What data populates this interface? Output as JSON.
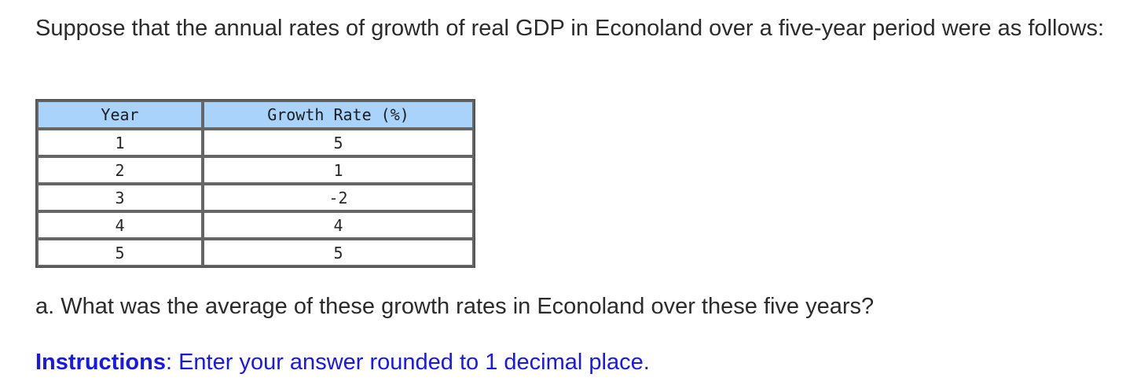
{
  "intro_text": "Suppose that the annual rates of growth of real GDP in Econoland over a five-year period were as follows:",
  "table": {
    "headers": [
      "Year",
      "Growth Rate (%)"
    ],
    "rows": [
      [
        "1",
        "5"
      ],
      [
        "2",
        "1"
      ],
      [
        "3",
        "-2"
      ],
      [
        "4",
        "4"
      ],
      [
        "5",
        "5"
      ]
    ]
  },
  "question_text": "a. What was the average of these growth rates in Econoland over these five years?",
  "instructions": {
    "label": "Instructions",
    "separator": ":",
    "text": " Enter your answer rounded to 1 decimal place."
  },
  "colors": {
    "header_bg": "#a9d3fb",
    "instructions_text": "#1717ee"
  }
}
